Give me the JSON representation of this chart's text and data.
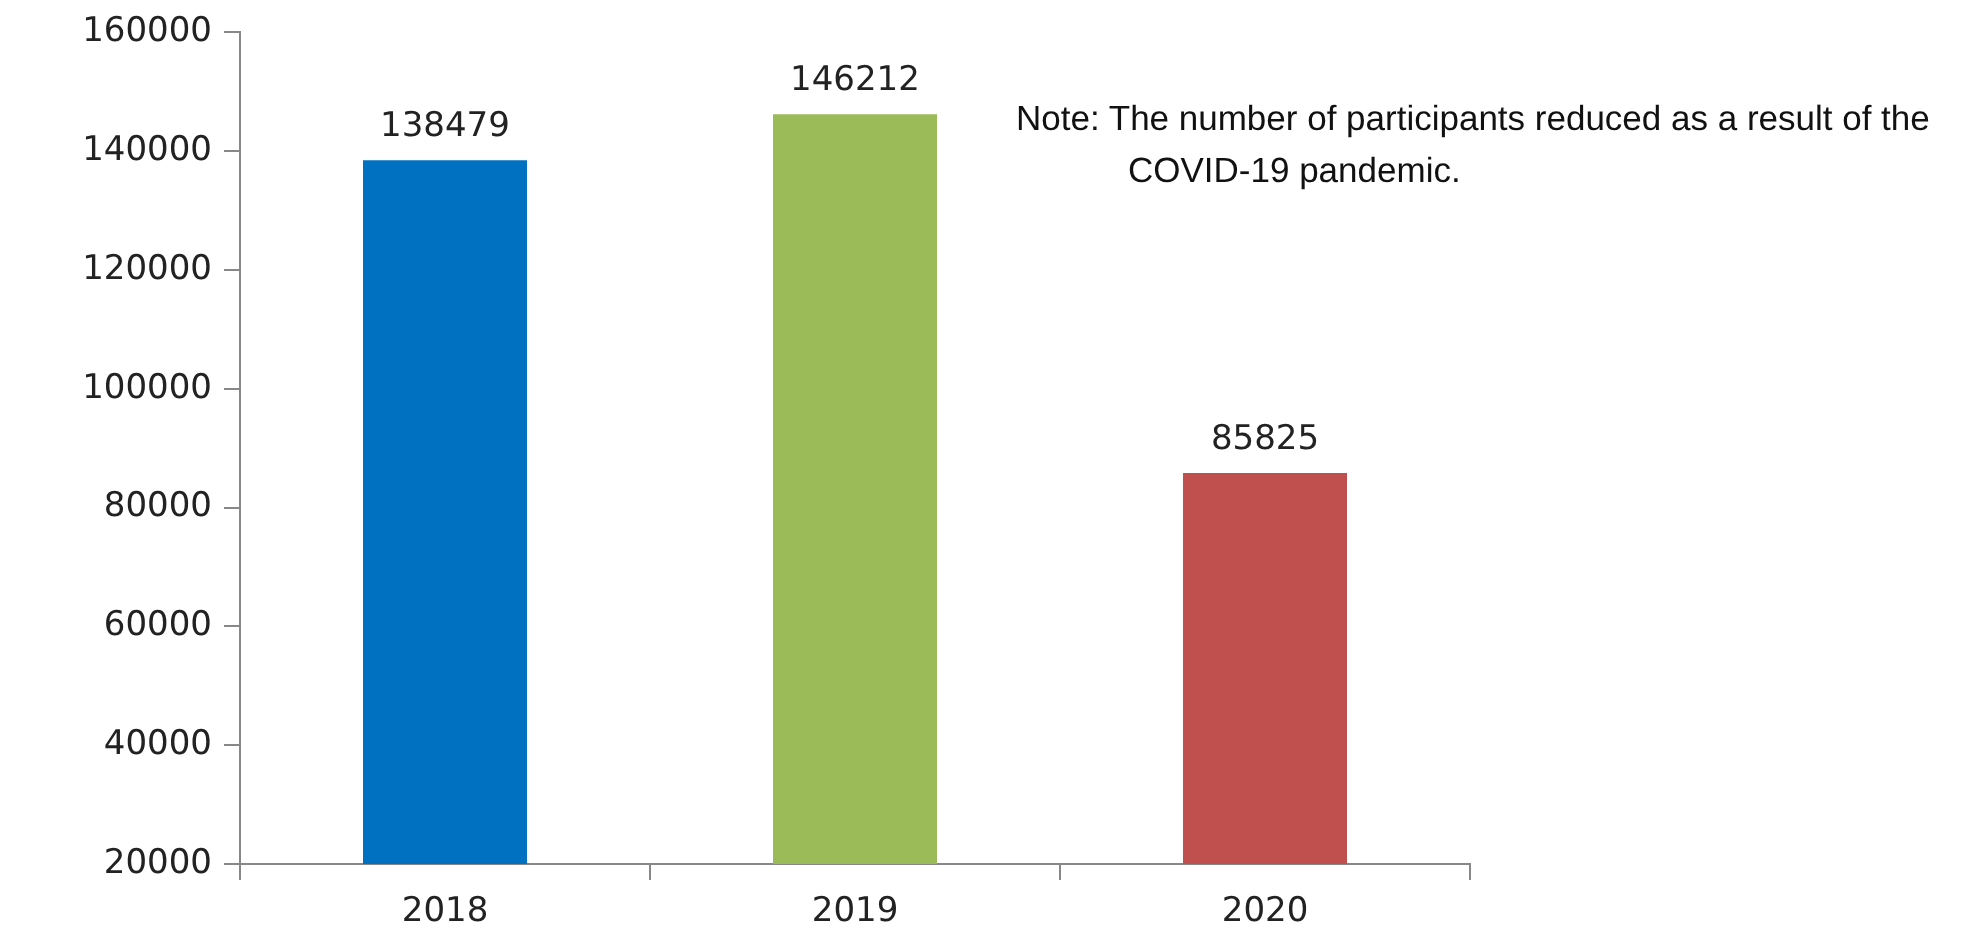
{
  "chart_data": {
    "type": "bar",
    "categories": [
      "2018",
      "2019",
      "2020"
    ],
    "values": [
      138479,
      146212,
      85825
    ],
    "colors": [
      "#0070c0",
      "#9bbb59",
      "#c0504d"
    ],
    "ylim": [
      20000,
      160000
    ],
    "yticks": [
      20000,
      40000,
      60000,
      80000,
      100000,
      120000,
      140000,
      160000
    ],
    "grid": false,
    "legend": false,
    "data_labels": true,
    "annotations": [
      "Note: The number of participants reduced as a result of the COVID-19 pandemic."
    ]
  }
}
